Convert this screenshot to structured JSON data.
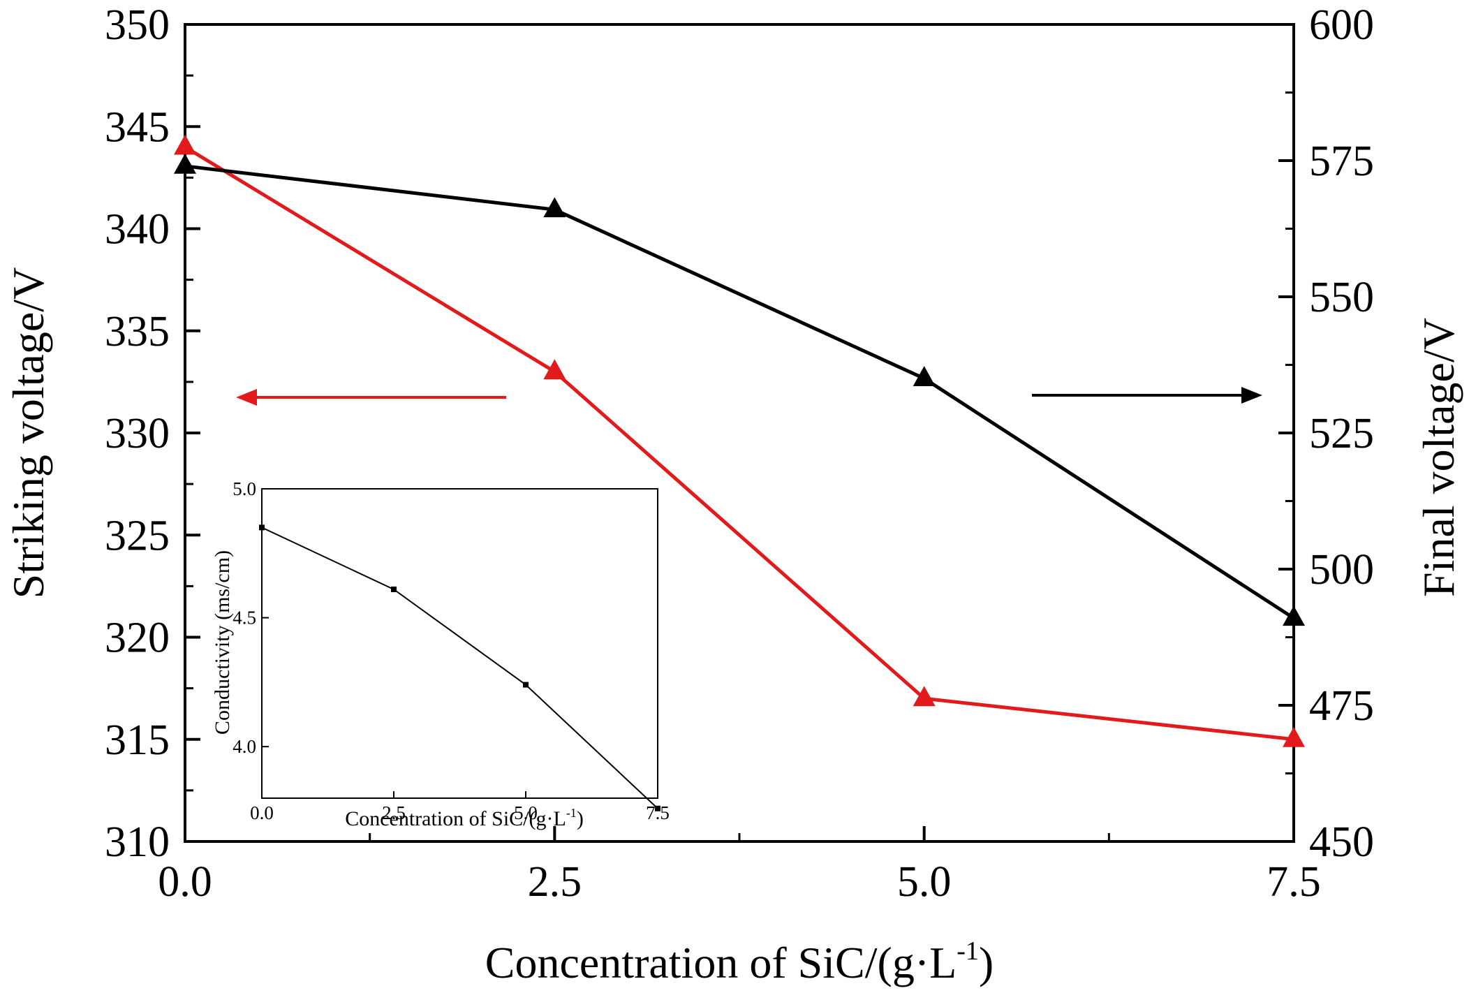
{
  "chart_data": [
    {
      "type": "line",
      "xlabel": "Concentration of SiC/(g·L",
      "xlabel_sup": "-1",
      "xlabel_end": ")",
      "ylabel_left": "Striking voltage/V",
      "ylabel_right": "Final voltage/V",
      "xlim": [
        0,
        7.5
      ],
      "ylim_left": [
        310,
        350
      ],
      "ylim_right": [
        450,
        600
      ],
      "x_ticks": [
        "0.0",
        "2.5",
        "5.0",
        "7.5"
      ],
      "y_ticks_left": [
        "310",
        "315",
        "320",
        "325",
        "330",
        "335",
        "340",
        "345",
        "350"
      ],
      "y_ticks_right": [
        "450",
        "475",
        "500",
        "525",
        "550",
        "575",
        "600"
      ],
      "series": [
        {
          "name": "Striking voltage",
          "axis": "left",
          "color": "#e31a1c",
          "marker": "triangle",
          "x": [
            0.0,
            2.5,
            5.0,
            7.5
          ],
          "values": [
            344,
            333,
            317,
            315
          ]
        },
        {
          "name": "Final voltage",
          "axis": "right",
          "color": "#000000",
          "marker": "triangle",
          "x": [
            0.0,
            2.5,
            5.0,
            7.5
          ],
          "values": [
            574,
            566,
            535,
            491
          ]
        }
      ],
      "annotations": [
        {
          "type": "arrow",
          "direction": "left",
          "color": "#e31a1c",
          "meaning": "points to left axis"
        },
        {
          "type": "arrow",
          "direction": "right",
          "color": "#000000",
          "meaning": "points to right axis"
        }
      ]
    },
    {
      "type": "line",
      "role": "inset",
      "xlabel": "Concentration of SiC/(g·L",
      "xlabel_sup": "-1",
      "xlabel_end": ")",
      "ylabel": "Conductivity (ms/cm)",
      "xlim": [
        0,
        7.5
      ],
      "ylim": [
        3.8,
        5.0
      ],
      "x_ticks": [
        "0.0",
        "2.5",
        "5.0",
        "7.5"
      ],
      "y_ticks": [
        "4.0",
        "4.5",
        "5.0"
      ],
      "series": [
        {
          "name": "Conductivity",
          "color": "#000000",
          "marker": "square",
          "x": [
            0.0,
            2.5,
            5.0,
            7.5
          ],
          "values": [
            4.85,
            4.61,
            4.24,
            3.76
          ]
        }
      ]
    }
  ]
}
